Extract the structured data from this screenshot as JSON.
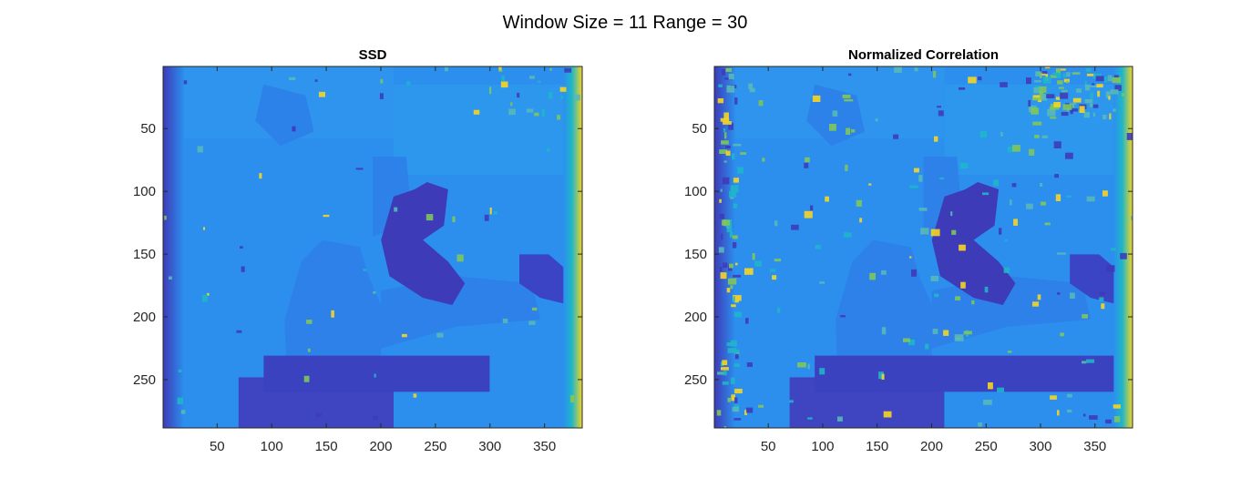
{
  "figure": {
    "title": "Window Size = 11 Range = 30"
  },
  "chart_data": [
    {
      "type": "heatmap",
      "title": "SSD",
      "xlabel": "",
      "ylabel": "",
      "xlim": [
        1,
        384
      ],
      "ylim": [
        1,
        288
      ],
      "y_reversed": true,
      "xticks": [
        50,
        100,
        150,
        200,
        250,
        300,
        350
      ],
      "yticks": [
        50,
        100,
        150,
        200,
        250
      ],
      "colormap": "parula",
      "colors": {
        "dark": "#3e3bb8",
        "mid": "#2d7fe8",
        "base": "#2c8fee",
        "teal": "#1fb6c9",
        "green": "#7fc65a",
        "yellow": "#f5d524"
      },
      "grid": false,
      "legend": "none"
    },
    {
      "type": "heatmap",
      "title": "Normalized Correlation",
      "xlabel": "",
      "ylabel": "",
      "xlim": [
        1,
        384
      ],
      "ylim": [
        1,
        288
      ],
      "y_reversed": true,
      "xticks": [
        50,
        100,
        150,
        200,
        250,
        300,
        350
      ],
      "yticks": [
        50,
        100,
        150,
        200,
        250
      ],
      "colormap": "parula",
      "colors": {
        "dark": "#3e3bb8",
        "mid": "#2d7fe8",
        "base": "#2c8fee",
        "teal": "#1fb6c9",
        "green": "#7fc65a",
        "yellow": "#f5d524"
      },
      "grid": false,
      "legend": "none"
    }
  ]
}
